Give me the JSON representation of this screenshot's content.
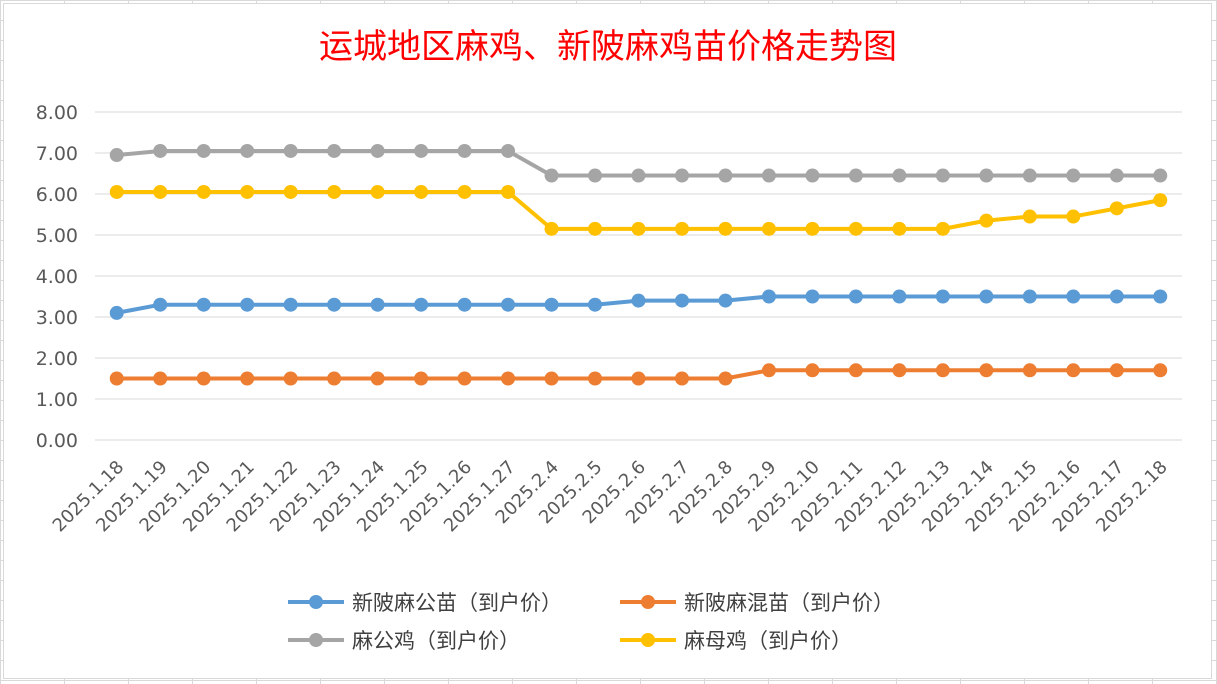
{
  "chart_data": {
    "type": "line",
    "title": "运城地区麻鸡、新陂麻鸡苗价格走势图",
    "xlabel": "",
    "ylabel": "",
    "ylim": [
      0,
      8
    ],
    "yticks": [
      "0.00",
      "1.00",
      "2.00",
      "3.00",
      "4.00",
      "5.00",
      "6.00",
      "7.00",
      "8.00"
    ],
    "grid": true,
    "legend_position": "bottom",
    "categories": [
      "2025.1.18",
      "2025.1.19",
      "2025.1.20",
      "2025.1.21",
      "2025.1.22",
      "2025.1.23",
      "2025.1.24",
      "2025.1.25",
      "2025.1.26",
      "2025.1.27",
      "2025.2.4",
      "2025.2.5",
      "2025.2.6",
      "2025.2.7",
      "2025.2.8",
      "2025.2.9",
      "2025.2.10",
      "2025.2.11",
      "2025.2.12",
      "2025.2.13",
      "2025.2.14",
      "2025.2.15",
      "2025.2.16",
      "2025.2.17",
      "2025.2.18"
    ],
    "series": [
      {
        "name": "新陂麻公苗（到户价）",
        "color": "#5b9bd5",
        "values": [
          3.1,
          3.3,
          3.3,
          3.3,
          3.3,
          3.3,
          3.3,
          3.3,
          3.3,
          3.3,
          3.3,
          3.3,
          3.4,
          3.4,
          3.4,
          3.5,
          3.5,
          3.5,
          3.5,
          3.5,
          3.5,
          3.5,
          3.5,
          3.5,
          3.5
        ]
      },
      {
        "name": "新陂麻混苗（到户价）",
        "color": "#ed7d31",
        "values": [
          1.5,
          1.5,
          1.5,
          1.5,
          1.5,
          1.5,
          1.5,
          1.5,
          1.5,
          1.5,
          1.5,
          1.5,
          1.5,
          1.5,
          1.5,
          1.7,
          1.7,
          1.7,
          1.7,
          1.7,
          1.7,
          1.7,
          1.7,
          1.7,
          1.7
        ]
      },
      {
        "name": "麻公鸡（到户价）",
        "color": "#a5a5a5",
        "values": [
          6.95,
          7.05,
          7.05,
          7.05,
          7.05,
          7.05,
          7.05,
          7.05,
          7.05,
          7.05,
          6.45,
          6.45,
          6.45,
          6.45,
          6.45,
          6.45,
          6.45,
          6.45,
          6.45,
          6.45,
          6.45,
          6.45,
          6.45,
          6.45,
          6.45
        ]
      },
      {
        "name": "麻母鸡（到户价）",
        "color": "#ffc000",
        "values": [
          6.05,
          6.05,
          6.05,
          6.05,
          6.05,
          6.05,
          6.05,
          6.05,
          6.05,
          6.05,
          5.15,
          5.15,
          5.15,
          5.15,
          5.15,
          5.15,
          5.15,
          5.15,
          5.15,
          5.15,
          5.35,
          5.45,
          5.45,
          5.65,
          5.85
        ]
      }
    ]
  }
}
